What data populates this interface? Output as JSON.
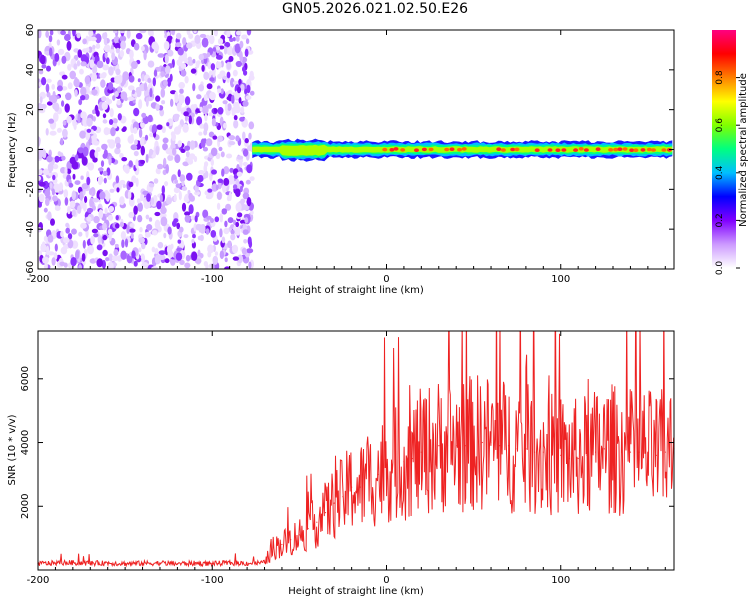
{
  "title": "GN05.2026.021.02.50.E26",
  "chart_data": [
    {
      "type": "heatmap",
      "xlabel": "Height of straight line (km)",
      "ylabel": "Frequency (Hz)",
      "xlim": [
        -200,
        165
      ],
      "ylim": [
        -60,
        60
      ],
      "xticks": [
        -200,
        -100,
        0,
        100
      ],
      "yticks": [
        -60,
        -40,
        -20,
        0,
        20,
        40,
        60
      ],
      "colorbar": {
        "label": "Normalized spectral amplitude",
        "range": [
          0,
          1
        ],
        "ticks": [
          0.0,
          0.2,
          0.4,
          0.6,
          0.8
        ],
        "tick_labels": [
          "0.0",
          "0.2",
          "0.4",
          "0.6",
          "0.8"
        ],
        "colors": [
          "#ffffff",
          "#cc99ff",
          "#8000ff",
          "#0000ff",
          "#00bfff",
          "#00ff80",
          "#80ff00",
          "#ffff00",
          "#ff8000",
          "#ff0000",
          "#ff0080"
        ]
      },
      "noise_region": {
        "x_range": [
          -200,
          -77
        ],
        "amplitude_range": [
          0.0,
          0.15
        ]
      },
      "signal_band": {
        "x_range": [
          -77,
          165
        ],
        "center_frequency_hz": 0,
        "half_width_hz": 4,
        "peak_amplitude": 0.95
      }
    },
    {
      "type": "line",
      "xlabel": "Height of straight line (km)",
      "ylabel": "SNR (10 * v/v)",
      "xlim": [
        -200,
        165
      ],
      "ylim": [
        0,
        7500
      ],
      "xticks": [
        -200,
        -100,
        0,
        100
      ],
      "yticks": [
        2000,
        4000,
        6000
      ],
      "series": [
        {
          "name": "SNR",
          "color": "#ee2222",
          "x": [
            -200,
            -190,
            -180,
            -170,
            -160,
            -150,
            -140,
            -130,
            -120,
            -110,
            -100,
            -90,
            -80,
            -70,
            -65,
            -60,
            -55,
            -50,
            -45,
            -40,
            -35,
            -30,
            -25,
            -20,
            -15,
            -10,
            -5,
            0,
            5,
            10,
            15,
            20,
            25,
            30,
            35,
            40,
            45,
            50,
            55,
            60,
            65,
            70,
            75,
            80,
            85,
            90,
            95,
            100,
            105,
            110,
            115,
            120,
            125,
            130,
            135,
            140,
            145,
            150,
            155,
            160,
            165
          ],
          "values": [
            200,
            220,
            230,
            210,
            220,
            200,
            210,
            220,
            200,
            210,
            200,
            220,
            210,
            230,
            700,
            800,
            950,
            1100,
            1300,
            1500,
            1800,
            2100,
            2300,
            2600,
            2600,
            2800,
            3000,
            3200,
            3300,
            3400,
            3500,
            3700,
            3800,
            3900,
            3900,
            3900,
            3900,
            4000,
            4000,
            4000,
            3900,
            3900,
            3800,
            3800,
            3700,
            3700,
            3600,
            3600,
            3500,
            3500,
            3600,
            3700,
            3800,
            3800,
            3700,
            3700,
            3700,
            3700,
            3600,
            3700,
            3800
          ]
        }
      ]
    }
  ]
}
